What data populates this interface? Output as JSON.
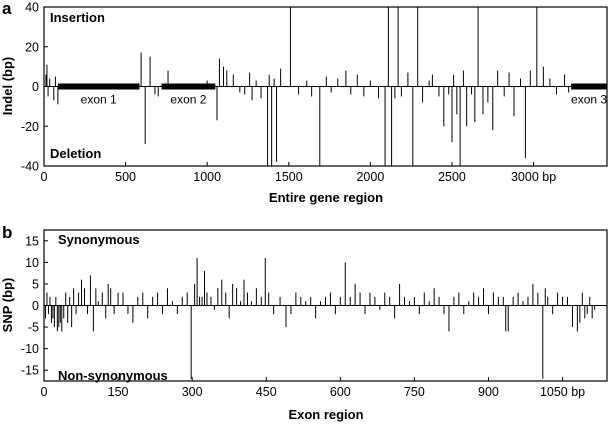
{
  "chart_data": [
    {
      "panel": "a",
      "type": "bar",
      "xlabel": "Entire gene region",
      "ylabel": "Indel (bp)",
      "xlim": [
        0,
        3450
      ],
      "ylim": [
        -40,
        40
      ],
      "xtick_values": [
        0,
        500,
        1000,
        1500,
        2000,
        2500,
        3000
      ],
      "xtick_labels": [
        "0",
        "500",
        "1000",
        "1500",
        "2000",
        "2500",
        "3000 bp"
      ],
      "ytick_values": [
        -40,
        -20,
        0,
        20,
        40
      ],
      "ytick_labels": [
        "-40",
        "-20",
        "0",
        "20",
        "40"
      ],
      "annotations": {
        "top": "Insertion",
        "bottom": "Deletion"
      },
      "exons": [
        {
          "label": "exon 1",
          "start": 85,
          "end": 585
        },
        {
          "label": "exon 2",
          "start": 720,
          "end": 1050
        },
        {
          "label": "exon 3",
          "start": 3230,
          "end": 3450
        }
      ],
      "x": [
        12,
        18,
        25,
        35,
        60,
        70,
        85,
        595,
        620,
        650,
        680,
        700,
        760,
        1000,
        1060,
        1075,
        1100,
        1120,
        1160,
        1200,
        1230,
        1260,
        1275,
        1300,
        1330,
        1370,
        1380,
        1395,
        1410,
        1425,
        1450,
        1510,
        1560,
        1610,
        1640,
        1690,
        1730,
        1760,
        1800,
        1850,
        1880,
        1920,
        1960,
        2000,
        2050,
        2090,
        2110,
        2130,
        2150,
        2170,
        2190,
        2230,
        2260,
        2290,
        2320,
        2360,
        2380,
        2420,
        2450,
        2480,
        2500,
        2510,
        2530,
        2550,
        2570,
        2590,
        2620,
        2640,
        2660,
        2690,
        2720,
        2750,
        2780,
        2820,
        2850,
        2880,
        2920,
        2950,
        2980,
        3020,
        3060,
        3100,
        3140,
        3190,
        3215
      ],
      "values": [
        6,
        11,
        -5,
        4,
        -7,
        5,
        -9,
        17,
        -29,
        15,
        -4,
        -5,
        8,
        3,
        -17,
        14,
        10,
        8,
        6,
        -3,
        -4,
        7,
        -7,
        3,
        -6,
        -40,
        6,
        -40,
        4,
        -38,
        9,
        40,
        -4,
        3,
        -5,
        -40,
        5,
        -3,
        4,
        8,
        -4,
        6,
        -5,
        3,
        -6,
        -40,
        40,
        -40,
        -6,
        40,
        -5,
        7,
        -40,
        40,
        -8,
        3,
        6,
        -5,
        -20,
        -4,
        -28,
        6,
        -14,
        -40,
        8,
        -20,
        -4,
        -18,
        40,
        -14,
        -8,
        -22,
        8,
        -5,
        7,
        -15,
        4,
        -36,
        8,
        40,
        10,
        4,
        -4,
        6,
        -3
      ]
    },
    {
      "panel": "b",
      "type": "bar",
      "xlabel": "Exon region",
      "ylabel": "SNP (bp)",
      "xlim": [
        0,
        1140
      ],
      "ylim": [
        -17.5,
        17.5
      ],
      "xtick_values": [
        0,
        150,
        300,
        450,
        600,
        750,
        900,
        1050
      ],
      "xtick_labels": [
        "0",
        "150",
        "300",
        "450",
        "600",
        "750",
        "900",
        "1050 bp"
      ],
      "ytick_values": [
        -15,
        -10,
        -5,
        0,
        5,
        10,
        15
      ],
      "ytick_labels": [
        "-15",
        "-10",
        "-5",
        "0",
        "5",
        "10",
        "15"
      ],
      "annotations": {
        "top": "Synonymous",
        "bottom": "Non-synonymous"
      },
      "x": [
        3,
        6,
        9,
        12,
        15,
        18,
        21,
        24,
        27,
        30,
        33,
        36,
        40,
        44,
        48,
        52,
        56,
        60,
        65,
        70,
        76,
        82,
        88,
        94,
        100,
        105,
        110,
        118,
        125,
        130,
        135,
        142,
        150,
        160,
        170,
        180,
        190,
        200,
        210,
        220,
        230,
        240,
        250,
        260,
        270,
        280,
        290,
        298,
        305,
        310,
        315,
        320,
        325,
        330,
        338,
        345,
        352,
        360,
        368,
        375,
        382,
        390,
        398,
        405,
        412,
        420,
        430,
        440,
        448,
        455,
        465,
        478,
        490,
        500,
        510,
        520,
        530,
        540,
        550,
        560,
        570,
        580,
        590,
        600,
        610,
        620,
        630,
        640,
        650,
        660,
        670,
        680,
        690,
        700,
        710,
        720,
        730,
        740,
        750,
        760,
        770,
        780,
        790,
        800,
        810,
        820,
        830,
        840,
        850,
        860,
        870,
        880,
        890,
        900,
        910,
        920,
        930,
        935,
        940,
        950,
        960,
        970,
        980,
        990,
        1000,
        1010,
        1015,
        1020,
        1030,
        1040,
        1050,
        1060,
        1070,
        1080,
        1085,
        1090,
        1095,
        1100,
        1105,
        1110,
        1115
      ],
      "values": [
        -3,
        3,
        -2,
        2,
        -4,
        -3,
        -5,
        2,
        -6,
        -5,
        -4,
        -6,
        -3,
        3,
        -4,
        2,
        -5,
        4,
        -2,
        3,
        6,
        4,
        -2,
        7,
        -6,
        4,
        1,
        3,
        -3,
        5,
        4,
        -2,
        3,
        3,
        -2,
        -4,
        2,
        3,
        -3,
        2,
        3,
        -2,
        4,
        1,
        -2,
        2,
        3,
        -17,
        5,
        11,
        2,
        2,
        8,
        3,
        2,
        -1,
        4,
        6,
        3,
        -3,
        5,
        4,
        1,
        6,
        3,
        1,
        4,
        2,
        11,
        3,
        -2,
        2,
        -5,
        -2,
        3,
        2,
        1,
        2,
        -3,
        1,
        2,
        3,
        -2,
        2,
        10,
        2,
        5,
        3,
        -2,
        3,
        2,
        -1,
        3,
        2,
        -3,
        5,
        2,
        1,
        2,
        -2,
        3,
        1,
        4,
        2,
        -2,
        -6,
        2,
        3,
        -2,
        1,
        3,
        2,
        4,
        -2,
        3,
        2,
        2,
        -6,
        -6,
        2,
        3,
        1,
        2,
        5,
        3,
        -17,
        4,
        2,
        -2,
        3,
        2,
        2,
        -5,
        -6,
        -4,
        3,
        -3,
        -2,
        2,
        -3,
        -1
      ]
    }
  ]
}
